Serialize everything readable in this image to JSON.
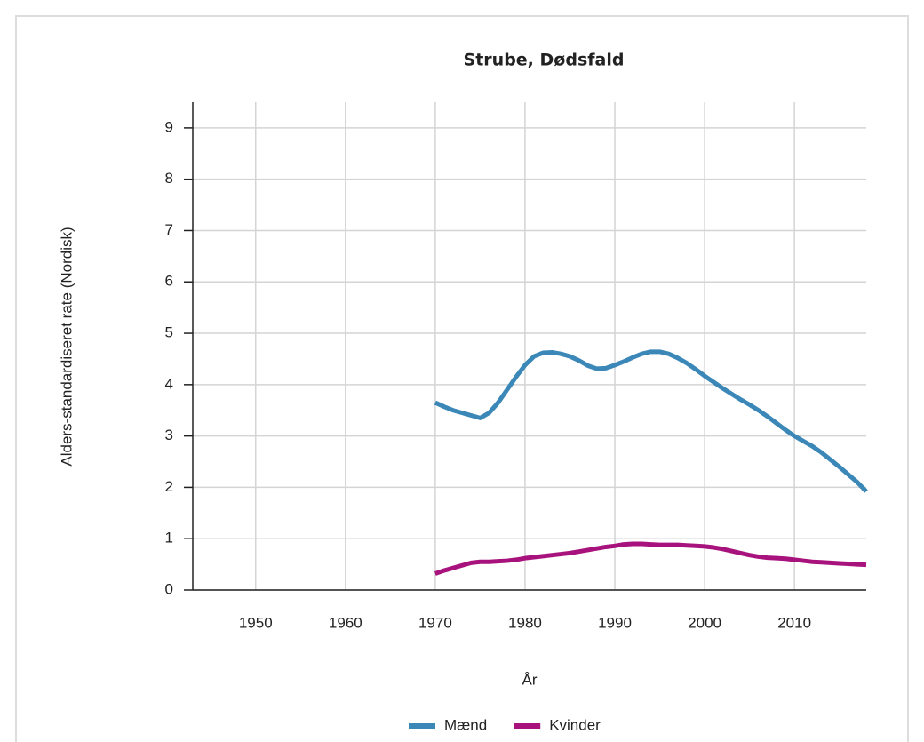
{
  "chart_data": {
    "type": "line",
    "title": "Strube, Dødsfald",
    "x_label": "År",
    "y_label": "Alders-standardiseret rate (Nordisk)",
    "x": [
      1970,
      1971,
      1972,
      1973,
      1974,
      1975,
      1976,
      1977,
      1978,
      1979,
      1980,
      1981,
      1982,
      1983,
      1984,
      1985,
      1986,
      1987,
      1988,
      1989,
      1990,
      1991,
      1992,
      1993,
      1994,
      1995,
      1996,
      1997,
      1998,
      1999,
      2000,
      2001,
      2002,
      2003,
      2004,
      2005,
      2006,
      2007,
      2008,
      2009,
      2010,
      2011,
      2012,
      2013,
      2014,
      2015,
      2016,
      2017,
      2018
    ],
    "series": [
      {
        "name": "Mænd",
        "color": "#3a87b8",
        "values": [
          3.65,
          3.57,
          3.5,
          3.45,
          3.4,
          3.35,
          3.45,
          3.65,
          3.9,
          4.15,
          4.38,
          4.55,
          4.62,
          4.63,
          4.6,
          4.55,
          4.47,
          4.37,
          4.31,
          4.32,
          4.38,
          4.45,
          4.53,
          4.6,
          4.64,
          4.64,
          4.6,
          4.52,
          4.42,
          4.3,
          4.17,
          4.05,
          3.93,
          3.82,
          3.71,
          3.61,
          3.5,
          3.38,
          3.25,
          3.12,
          3.0,
          2.9,
          2.8,
          2.68,
          2.54,
          2.4,
          2.25,
          2.1,
          1.92
        ]
      },
      {
        "name": "Kvinder",
        "color": "#a8127d",
        "values": [
          0.32,
          0.38,
          0.43,
          0.48,
          0.53,
          0.55,
          0.55,
          0.56,
          0.57,
          0.59,
          0.62,
          0.64,
          0.66,
          0.68,
          0.7,
          0.72,
          0.75,
          0.78,
          0.81,
          0.84,
          0.86,
          0.89,
          0.9,
          0.9,
          0.89,
          0.88,
          0.88,
          0.88,
          0.87,
          0.86,
          0.85,
          0.83,
          0.8,
          0.76,
          0.72,
          0.68,
          0.65,
          0.63,
          0.62,
          0.61,
          0.59,
          0.57,
          0.55,
          0.54,
          0.53,
          0.52,
          0.51,
          0.5,
          0.49
        ]
      }
    ],
    "xlim": [
      1943,
      2018
    ],
    "xticks": [
      1950,
      1960,
      1970,
      1980,
      1990,
      2000,
      2010
    ],
    "ylim": [
      0,
      9.5
    ],
    "yticks": [
      0,
      1,
      2,
      3,
      4,
      5,
      6,
      7,
      8,
      9
    ],
    "grid": true,
    "legend": "bottom"
  }
}
